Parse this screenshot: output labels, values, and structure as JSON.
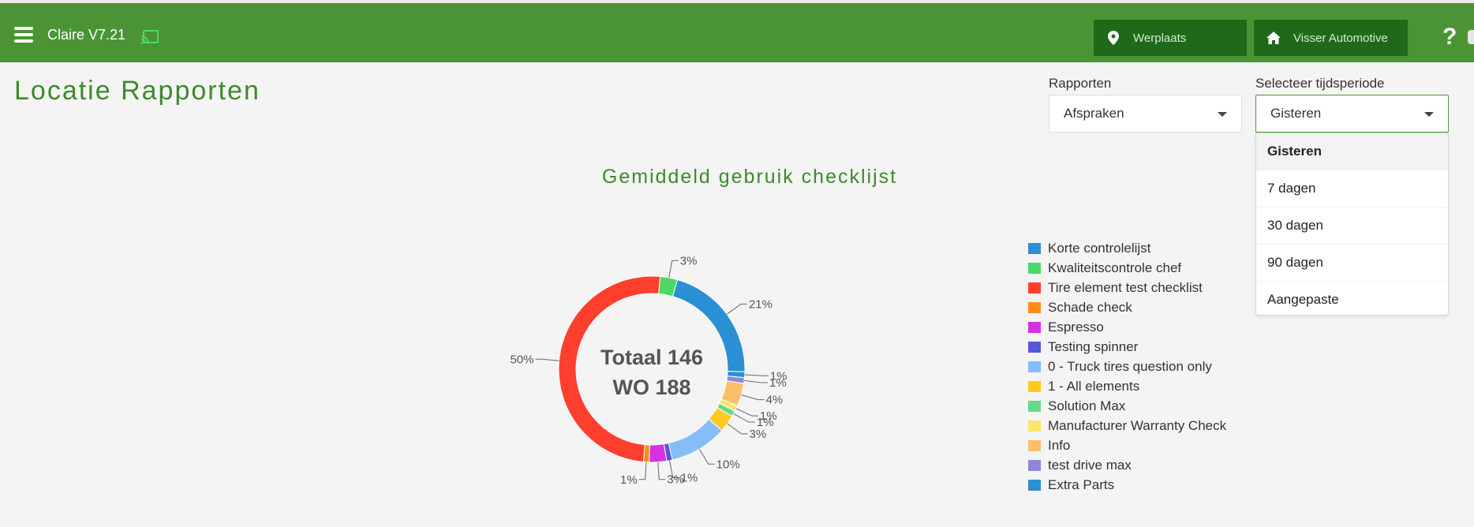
{
  "header": {
    "app_title": "Claire V7.21",
    "location_button": "Werplaats",
    "company_button": "Visser Automotive",
    "help_label": "?"
  },
  "page": {
    "title": "Locatie Rapporten"
  },
  "filters": {
    "reports_label": "Rapporten",
    "reports_value": "Afspraken",
    "period_label": "Selecteer tijdsperiode",
    "period_value": "Gisteren",
    "period_options": [
      "Gisteren",
      "7 dagen",
      "30 dagen",
      "90 dagen",
      "Aangepaste"
    ]
  },
  "chart_data": {
    "type": "pie",
    "title": "Gemiddeld gebruik checklijst",
    "center_text": [
      "Totaal 146",
      "WO 188"
    ],
    "slices": [
      {
        "name": "Korte controlelijst",
        "value": 21,
        "label": "21%",
        "color": "#2b8fd4"
      },
      {
        "name": "Extra Parts",
        "value": 1,
        "label": "1%",
        "color": "#2b8fd4"
      },
      {
        "name": "test drive max",
        "value": 1,
        "label": "1%",
        "color": "#8d86dc"
      },
      {
        "name": "Info",
        "value": 4,
        "label": "4%",
        "color": "#fbbf6a"
      },
      {
        "name": "Manufacturer Warranty Check",
        "value": 1,
        "label": "1%",
        "color": "#fde46a"
      },
      {
        "name": "Solution Max",
        "value": 1,
        "label": "1%",
        "color": "#66d98b"
      },
      {
        "name": "1 - All elements",
        "value": 3,
        "label": "3%",
        "color": "#ffca1f"
      },
      {
        "name": "0 - Truck tires question only",
        "value": 10,
        "label": "10%",
        "color": "#85bdf9"
      },
      {
        "name": "Testing spinner",
        "value": 1,
        "label": "1%",
        "color": "#5558d8"
      },
      {
        "name": "Espresso",
        "value": 3,
        "label": "3%",
        "color": "#d830e0"
      },
      {
        "name": "Schade check",
        "value": 1,
        "label": "1%",
        "color": "#ff8c1a"
      },
      {
        "name": "Tire element test checklist",
        "value": 50,
        "label": "50%",
        "color": "#ff3f2e"
      },
      {
        "name": "Kwaliteitscontrole chef",
        "value": 3,
        "label": "3%",
        "color": "#4cd964"
      }
    ],
    "legend": [
      {
        "name": "Korte controlelijst",
        "color": "#2b8fd4"
      },
      {
        "name": "Kwaliteitscontrole chef",
        "color": "#4cd964"
      },
      {
        "name": "Tire element test checklist",
        "color": "#ff3f2e"
      },
      {
        "name": "Schade check",
        "color": "#ff8c1a"
      },
      {
        "name": "Espresso",
        "color": "#d830e0"
      },
      {
        "name": "Testing spinner",
        "color": "#5558d8"
      },
      {
        "name": "0 - Truck tires question only",
        "color": "#85bdf9"
      },
      {
        "name": "1 - All elements",
        "color": "#ffca1f"
      },
      {
        "name": "Solution Max",
        "color": "#66d98b"
      },
      {
        "name": "Manufacturer Warranty Check",
        "color": "#fde46a"
      },
      {
        "name": "Info",
        "color": "#fbbf6a"
      },
      {
        "name": "test drive max",
        "color": "#8d86dc"
      },
      {
        "name": "Extra Parts",
        "color": "#2b8fd4"
      }
    ],
    "legend_position": "right"
  }
}
